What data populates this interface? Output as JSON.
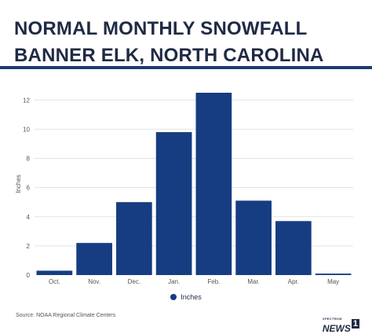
{
  "title_lines": [
    "NORMAL MONTHLY SNOWFALL",
    "BANNER ELK, NORTH CAROLINA"
  ],
  "source": "Source: NOAA Regional Climate Centers",
  "logo": {
    "top": "SPECTRUM",
    "word": "NEWS",
    "number": "1"
  },
  "colors": {
    "bar": "#163c82",
    "rule": "#1d3a73",
    "grid": "#e3e3e3"
  },
  "chart_data": {
    "type": "bar",
    "categories": [
      "Oct.",
      "Nov.",
      "Dec.",
      "Jan.",
      "Feb.",
      "Mar.",
      "Apr.",
      "May"
    ],
    "series": [
      {
        "name": "Inches",
        "values": [
          0.3,
          2.2,
          5.0,
          9.8,
          12.5,
          5.1,
          3.7,
          0.1
        ]
      }
    ],
    "ylabel": "Inches",
    "xlabel": "",
    "ylim": [
      0,
      12.5
    ],
    "yticks": [
      0,
      2,
      4,
      6,
      8,
      10,
      12
    ],
    "grid": true,
    "legend": "bottom"
  }
}
